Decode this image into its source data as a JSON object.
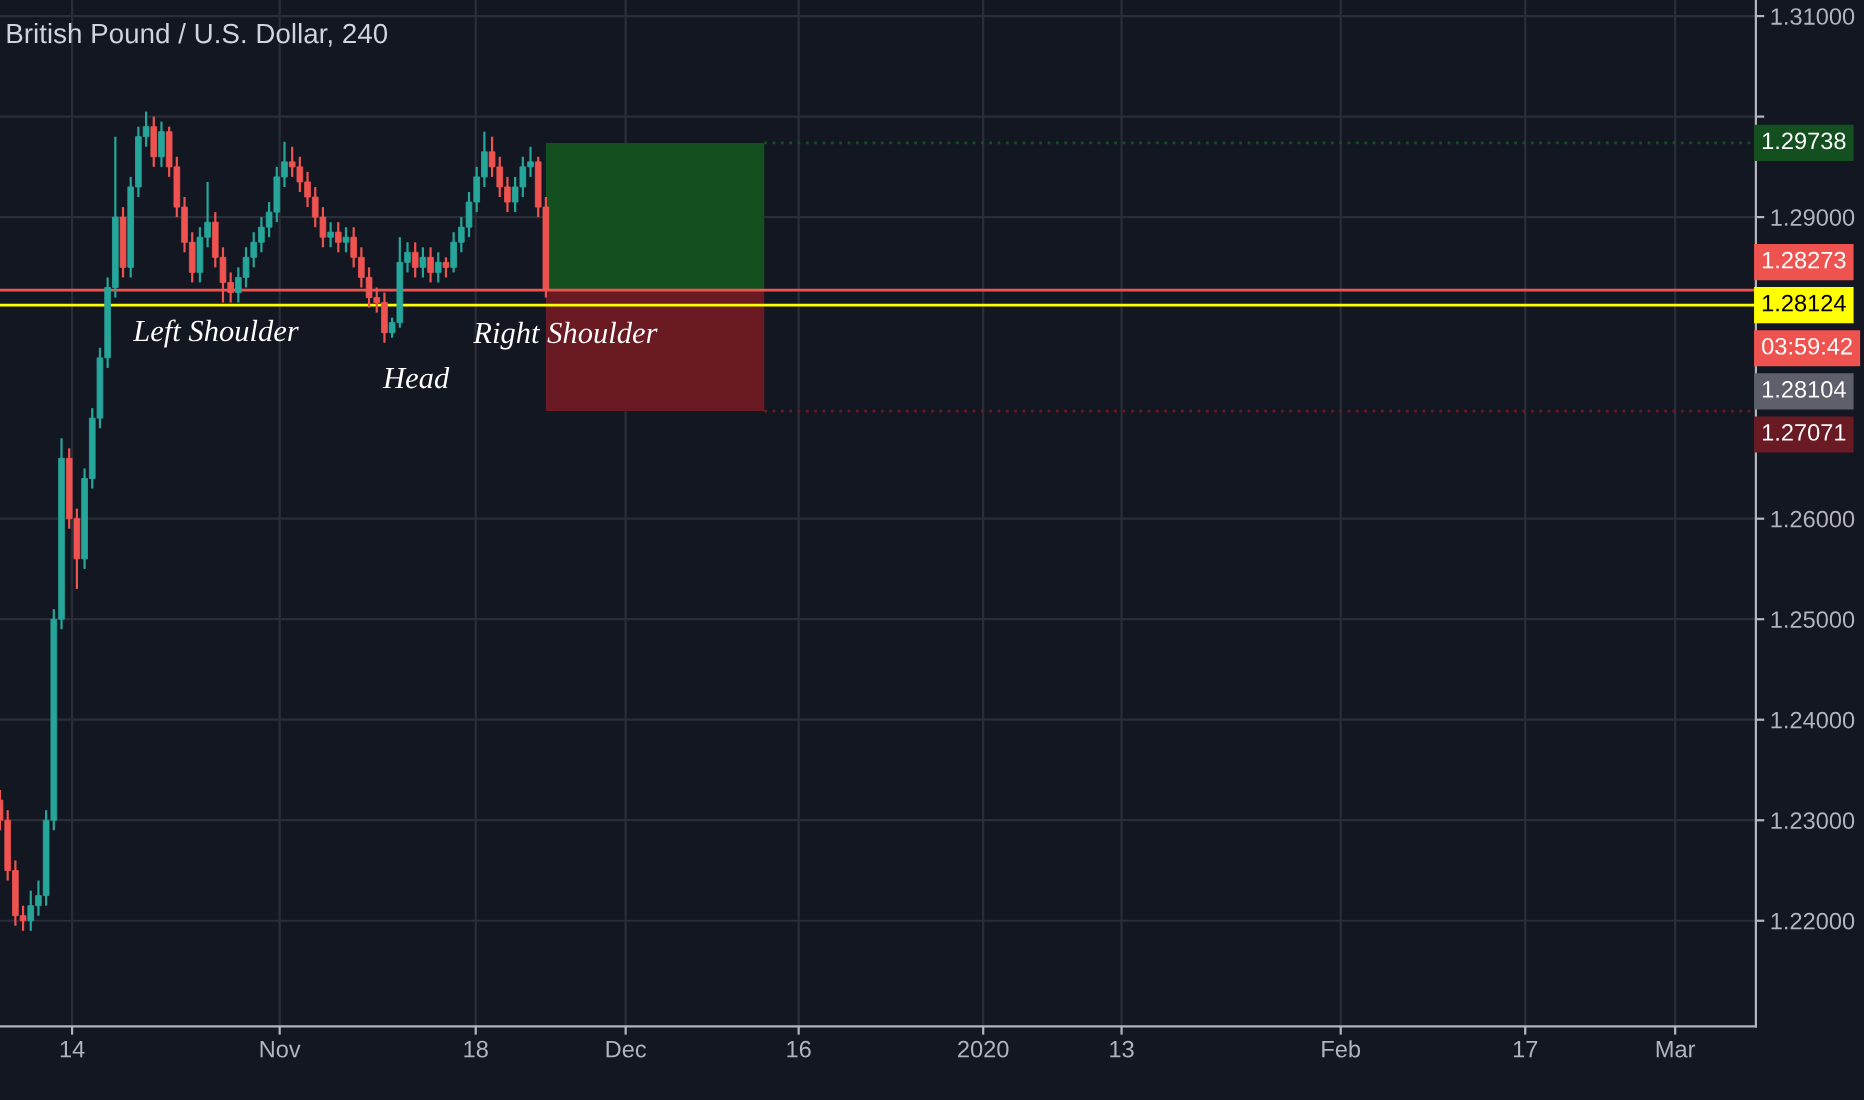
{
  "chart_data": {
    "type": "candlestick",
    "title": "British Pound / U.S. Dollar, 240",
    "x": [
      "2019-10-07T18:00",
      "2019-10-08T10:00",
      "2019-10-09T02:00",
      "2019-10-09T18:00",
      "2019-10-10T10:00",
      "2019-10-11T02:00",
      "2019-10-11T18:00",
      "2019-10-12T10:00",
      "2019-10-13T02:00",
      "2019-10-13T18:00",
      "2019-10-14T10:00",
      "2019-10-15T02:00",
      "2019-10-15T18:00",
      "2019-10-16T10:00",
      "2019-10-17T02:00",
      "2019-10-17T18:00",
      "2019-10-18T10:00",
      "2019-10-19T02:00",
      "2019-10-19T18:00",
      "2019-10-20T10:00",
      "2019-10-21T02:00",
      "2019-10-21T18:00",
      "2019-10-22T10:00",
      "2019-10-23T02:00",
      "2019-10-23T18:00",
      "2019-10-24T10:00",
      "2019-10-25T02:00",
      "2019-10-25T18:00",
      "2019-10-26T10:00",
      "2019-10-27T02:00",
      "2019-10-27T18:00",
      "2019-10-28T10:00",
      "2019-10-29T02:00",
      "2019-10-29T18:00",
      "2019-10-30T10:00",
      "2019-10-31T02:00",
      "2019-10-31T18:00",
      "2019-11-01T10:00",
      "2019-11-02T02:00",
      "2019-11-02T18:00",
      "2019-11-03T10:00",
      "2019-11-04T02:00",
      "2019-11-04T18:00",
      "2019-11-05T10:00",
      "2019-11-06T02:00",
      "2019-11-06T18:00",
      "2019-11-07T10:00",
      "2019-11-08T02:00",
      "2019-11-08T18:00",
      "2019-11-09T10:00",
      "2019-11-10T02:00",
      "2019-11-10T18:00",
      "2019-11-11T10:00",
      "2019-11-12T02:00",
      "2019-11-12T18:00",
      "2019-11-13T10:00",
      "2019-11-14T02:00",
      "2019-11-14T18:00",
      "2019-11-15T10:00",
      "2019-11-16T02:00",
      "2019-11-16T18:00",
      "2019-11-17T10:00",
      "2019-11-18T02:00",
      "2019-11-18T18:00",
      "2019-11-19T10:00",
      "2019-11-20T02:00",
      "2019-11-20T18:00",
      "2019-11-21T10:00",
      "2019-11-22T02:00",
      "2019-11-22T18:00",
      "2019-11-23T10:00",
      "2019-11-24T02:00"
    ],
    "ohlc": [
      [
        1.232,
        1.233,
        1.229,
        1.23
      ],
      [
        1.23,
        1.231,
        1.224,
        1.225
      ],
      [
        1.225,
        1.226,
        1.2195,
        1.2205
      ],
      [
        1.2205,
        1.2215,
        1.219,
        1.22
      ],
      [
        1.22,
        1.223,
        1.219,
        1.2215
      ],
      [
        1.2215,
        1.224,
        1.2205,
        1.2225
      ],
      [
        1.2225,
        1.231,
        1.2215,
        1.23
      ],
      [
        1.23,
        1.251,
        1.229,
        1.25
      ],
      [
        1.25,
        1.268,
        1.249,
        1.266
      ],
      [
        1.266,
        1.267,
        1.259,
        1.26
      ],
      [
        1.26,
        1.261,
        1.253,
        1.256
      ],
      [
        1.256,
        1.265,
        1.255,
        1.264
      ],
      [
        1.264,
        1.271,
        1.263,
        1.27
      ],
      [
        1.27,
        1.277,
        1.269,
        1.276
      ],
      [
        1.276,
        1.284,
        1.275,
        1.283
      ],
      [
        1.283,
        1.298,
        1.282,
        1.29
      ],
      [
        1.29,
        1.291,
        1.284,
        1.285
      ],
      [
        1.285,
        1.294,
        1.284,
        1.293
      ],
      [
        1.293,
        1.299,
        1.292,
        1.298
      ],
      [
        1.298,
        1.3005,
        1.297,
        1.299
      ],
      [
        1.299,
        1.3,
        1.295,
        1.296
      ],
      [
        1.296,
        1.2995,
        1.295,
        1.2985
      ],
      [
        1.2985,
        1.299,
        1.294,
        1.295
      ],
      [
        1.295,
        1.296,
        1.29,
        1.291
      ],
      [
        1.291,
        1.292,
        1.2865,
        1.2875
      ],
      [
        1.2875,
        1.2885,
        1.2835,
        1.2845
      ],
      [
        1.2845,
        1.289,
        1.2835,
        1.288
      ],
      [
        1.288,
        1.2935,
        1.287,
        1.2895
      ],
      [
        1.2895,
        1.2905,
        1.285,
        1.286
      ],
      [
        1.286,
        1.287,
        1.2815,
        1.2835
      ],
      [
        1.2835,
        1.2845,
        1.2815,
        1.2825
      ],
      [
        1.2825,
        1.285,
        1.2815,
        1.284
      ],
      [
        1.284,
        1.287,
        1.283,
        1.286
      ],
      [
        1.286,
        1.2885,
        1.285,
        1.2875
      ],
      [
        1.2875,
        1.29,
        1.2865,
        1.289
      ],
      [
        1.289,
        1.2915,
        1.288,
        1.2905
      ],
      [
        1.2905,
        1.295,
        1.2895,
        1.294
      ],
      [
        1.294,
        1.2975,
        1.293,
        1.2955
      ],
      [
        1.2955,
        1.297,
        1.294,
        1.295
      ],
      [
        1.295,
        1.296,
        1.2925,
        1.2935
      ],
      [
        1.2935,
        1.2945,
        1.291,
        1.292
      ],
      [
        1.292,
        1.293,
        1.289,
        1.29
      ],
      [
        1.29,
        1.291,
        1.287,
        1.288
      ],
      [
        1.288,
        1.2895,
        1.287,
        1.2885
      ],
      [
        1.2885,
        1.2895,
        1.2865,
        1.2875
      ],
      [
        1.2875,
        1.289,
        1.2865,
        1.288
      ],
      [
        1.288,
        1.289,
        1.285,
        1.286
      ],
      [
        1.286,
        1.287,
        1.283,
        1.284
      ],
      [
        1.284,
        1.285,
        1.281,
        1.282
      ],
      [
        1.282,
        1.283,
        1.2805,
        1.2815
      ],
      [
        1.2815,
        1.2825,
        1.2775,
        1.2785
      ],
      [
        1.2785,
        1.28,
        1.278,
        1.2795
      ],
      [
        1.2795,
        1.288,
        1.279,
        1.2855
      ],
      [
        1.2855,
        1.2875,
        1.2845,
        1.2865
      ],
      [
        1.2865,
        1.2875,
        1.284,
        1.285
      ],
      [
        1.285,
        1.287,
        1.284,
        1.286
      ],
      [
        1.286,
        1.287,
        1.2835,
        1.2845
      ],
      [
        1.2845,
        1.2865,
        1.2835,
        1.2855
      ],
      [
        1.2855,
        1.286,
        1.284,
        1.285
      ],
      [
        1.285,
        1.2885,
        1.2845,
        1.2875
      ],
      [
        1.2875,
        1.29,
        1.2865,
        1.289
      ],
      [
        1.289,
        1.2925,
        1.288,
        1.2915
      ],
      [
        1.2915,
        1.295,
        1.2905,
        1.294
      ],
      [
        1.294,
        1.2985,
        1.293,
        1.2965
      ],
      [
        1.2965,
        1.298,
        1.294,
        1.295
      ],
      [
        1.295,
        1.296,
        1.292,
        1.293
      ],
      [
        1.293,
        1.294,
        1.2905,
        1.2915
      ],
      [
        1.2915,
        1.294,
        1.2905,
        1.293
      ],
      [
        1.293,
        1.296,
        1.292,
        1.295
      ],
      [
        1.295,
        1.297,
        1.294,
        1.2955
      ],
      [
        1.2955,
        1.296,
        1.29,
        1.291
      ],
      [
        1.291,
        1.292,
        1.282,
        1.2827
      ]
    ],
    "xlim": [
      "2019-10-07T18:00",
      "2020-03-08"
    ],
    "xticks": [
      {
        "value": "2019-10-14",
        "label": "14"
      },
      {
        "value": "2019-11-01",
        "label": "Nov"
      },
      {
        "value": "2019-11-18",
        "label": "18"
      },
      {
        "value": "2019-12-01",
        "label": "Dec"
      },
      {
        "value": "2019-12-16",
        "label": "16"
      },
      {
        "value": "2020-01-01",
        "label": "2020"
      },
      {
        "value": "2020-01-13",
        "label": "13"
      },
      {
        "value": "2020-02-01",
        "label": "Feb"
      },
      {
        "value": "2020-02-17",
        "label": "17"
      },
      {
        "value": "2020-03-01",
        "label": "Mar"
      }
    ],
    "ylim": [
      1.2095,
      1.3116
    ],
    "yticks": [
      {
        "value": 1.22,
        "label": "1.22000"
      },
      {
        "value": 1.23,
        "label": "1.23000"
      },
      {
        "value": 1.24,
        "label": "1.24000"
      },
      {
        "value": 1.25,
        "label": "1.25000"
      },
      {
        "value": 1.26,
        "label": "1.26000"
      },
      {
        "value": 1.29,
        "label": "1.29000"
      },
      {
        "value": 1.3,
        "label": null
      },
      {
        "value": 1.31,
        "label": "1.31000"
      }
    ],
    "grid": true,
    "ref_lines": [
      {
        "axis": "y",
        "value": 1.28273,
        "label": "1.28273",
        "color": "#ef5350"
      },
      {
        "axis": "y",
        "value": 1.28124,
        "label": "1.28124",
        "color": "#ffff00"
      }
    ],
    "bands": [
      {
        "axis": "y",
        "from": 1.28273,
        "to": 1.29738,
        "label": "1.29738",
        "color": "#14501f"
      },
      {
        "axis": "y",
        "from": 1.27071,
        "to": 1.28273,
        "label": "1.27071",
        "color": "#6a1a22"
      }
    ],
    "annotations": [
      "Left Shoulder",
      "Head",
      "Right Shoulder",
      "03:59:42",
      "1.28104"
    ]
  }
}
